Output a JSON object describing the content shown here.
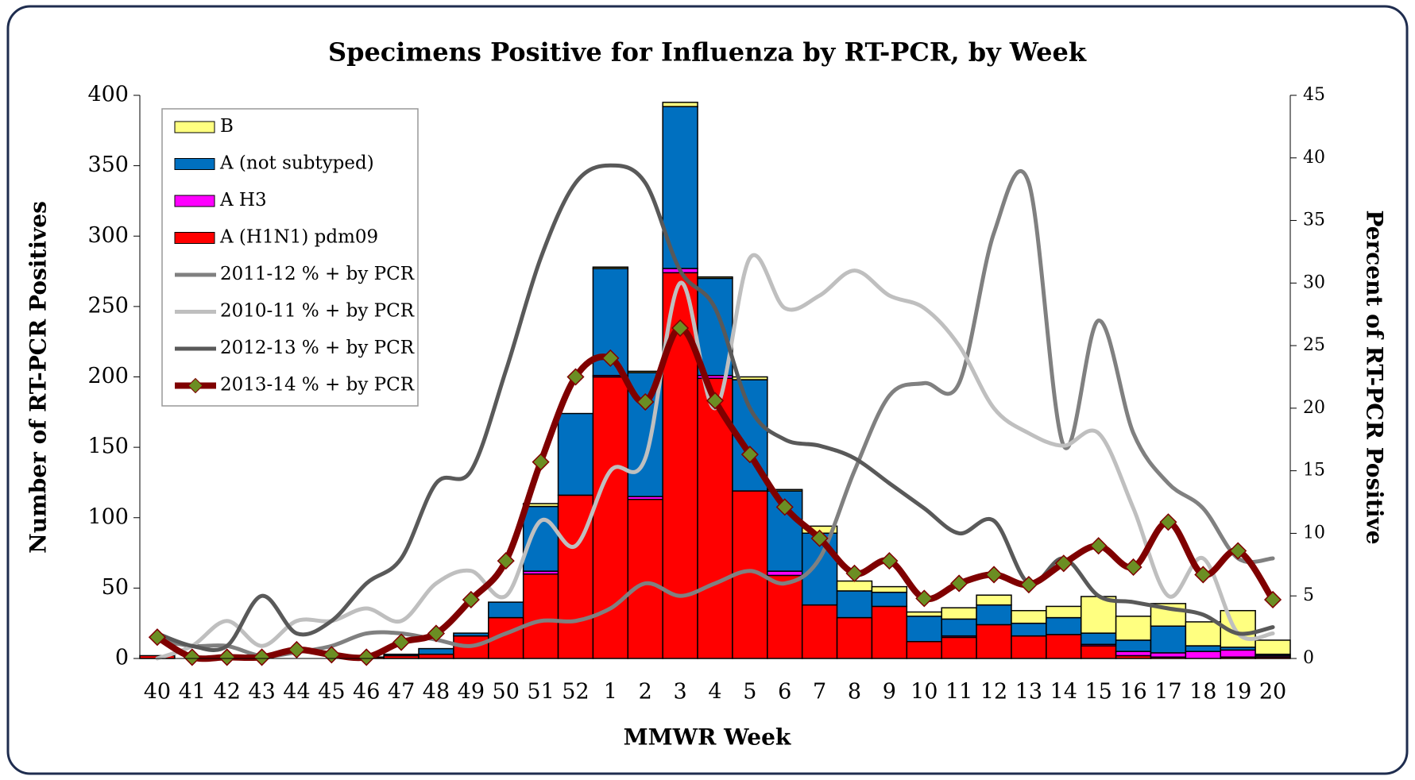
{
  "chart_data": {
    "type": "bar",
    "title": "Specimens Positive for Influenza by RT-PCR, by Week",
    "x_label": "MMWR Week",
    "y_label": "Number of RT-PCR Positives",
    "y2_label": "Percent of RT-PCR Positive",
    "categories": [
      "40",
      "41",
      "42",
      "43",
      "44",
      "45",
      "46",
      "47",
      "48",
      "49",
      "50",
      "51",
      "52",
      "1",
      "2",
      "3",
      "4",
      "5",
      "6",
      "7",
      "8",
      "9",
      "10",
      "11",
      "12",
      "13",
      "14",
      "15",
      "16",
      "17",
      "18",
      "19",
      "20"
    ],
    "ylim": [
      0,
      400
    ],
    "yticks": [
      0,
      50,
      100,
      150,
      200,
      250,
      300,
      350,
      400
    ],
    "y2lim": [
      0,
      45
    ],
    "y2ticks": [
      0,
      5,
      10,
      15,
      20,
      25,
      30,
      35,
      40,
      45
    ],
    "legend": "top-left",
    "series": [
      {
        "name": "B",
        "type": "bar",
        "color": "#ffff80",
        "values": [
          0,
          0,
          0,
          0,
          0,
          0,
          0,
          0,
          0,
          0,
          0,
          2,
          0,
          1,
          1,
          3,
          1,
          2,
          1,
          5,
          7,
          4,
          3,
          8,
          7,
          9,
          8,
          26,
          17,
          16,
          17,
          26,
          10
        ]
      },
      {
        "name": "A (not subtyped)",
        "type": "bar",
        "color": "#0070c0",
        "values": [
          0,
          0,
          0,
          0,
          0,
          0,
          0,
          1,
          4,
          2,
          11,
          46,
          58,
          76,
          88,
          115,
          69,
          79,
          57,
          51,
          19,
          10,
          18,
          12,
          14,
          9,
          12,
          8,
          8,
          19,
          4,
          2,
          1
        ]
      },
      {
        "name": "A H3",
        "type": "bar",
        "color": "#ff00ff",
        "values": [
          0,
          0,
          0,
          0,
          0,
          0,
          0,
          0,
          0,
          0,
          0,
          2,
          0,
          1,
          2,
          3,
          2,
          0,
          3,
          0,
          0,
          0,
          0,
          1,
          0,
          0,
          0,
          1,
          3,
          3,
          5,
          5,
          1
        ]
      },
      {
        "name": "A (H1N1) pdm09",
        "type": "bar",
        "color": "#ff0000",
        "values": [
          2,
          0,
          0,
          0,
          0,
          0,
          1,
          2,
          3,
          16,
          29,
          60,
          116,
          200,
          113,
          274,
          199,
          119,
          59,
          38,
          29,
          37,
          12,
          15,
          24,
          16,
          17,
          9,
          2,
          1,
          0,
          1,
          1
        ]
      },
      {
        "name": "2011-12 % + by PCR",
        "type": "line",
        "axis": "y2",
        "color": "#808080",
        "values": [
          1.5,
          1,
          1,
          0.2,
          0.5,
          1,
          2,
          2,
          1.5,
          1,
          2,
          3,
          3,
          4,
          6,
          5,
          6,
          7,
          6,
          8,
          15,
          21,
          22,
          22,
          34,
          38,
          17,
          27,
          18,
          14,
          12,
          8,
          8
        ]
      },
      {
        "name": "2010-11 % + by PCR",
        "type": "line",
        "axis": "y2",
        "color": "#bfbfbf",
        "values": [
          0,
          1,
          3,
          1,
          3,
          3,
          4,
          3,
          6,
          7,
          5,
          11,
          9,
          15,
          16,
          30,
          20,
          32,
          28,
          29,
          31,
          29,
          28,
          25,
          20,
          18,
          17,
          18,
          12,
          5,
          8,
          2,
          2
        ]
      },
      {
        "name": "2012-13 % + by PCR",
        "type": "line",
        "axis": "y2",
        "color": "#595959",
        "values": [
          2,
          1,
          1,
          5,
          2,
          3,
          6,
          8,
          14,
          15,
          23,
          32,
          38,
          39.4,
          38,
          31,
          28,
          20,
          17.5,
          17,
          16,
          14,
          12,
          10,
          11,
          6,
          8,
          5,
          4.5,
          4,
          3.5,
          2,
          2.5
        ]
      },
      {
        "name": "2013-14 % + by PCR",
        "type": "line",
        "axis": "y2",
        "color": "#7f0000",
        "marker_color": "#6b8e23",
        "values": [
          1.7,
          0.1,
          0.1,
          0.1,
          0.7,
          0.3,
          0.1,
          1.3,
          2,
          4.7,
          7.8,
          15.7,
          22.5,
          24,
          20.5,
          26.4,
          20.6,
          16.3,
          12.1,
          9.6,
          6.8,
          7.8,
          4.8,
          6,
          6.7,
          5.9,
          7.6,
          9,
          7.3,
          10.9,
          6.7,
          8.6,
          4.7
        ]
      }
    ]
  }
}
